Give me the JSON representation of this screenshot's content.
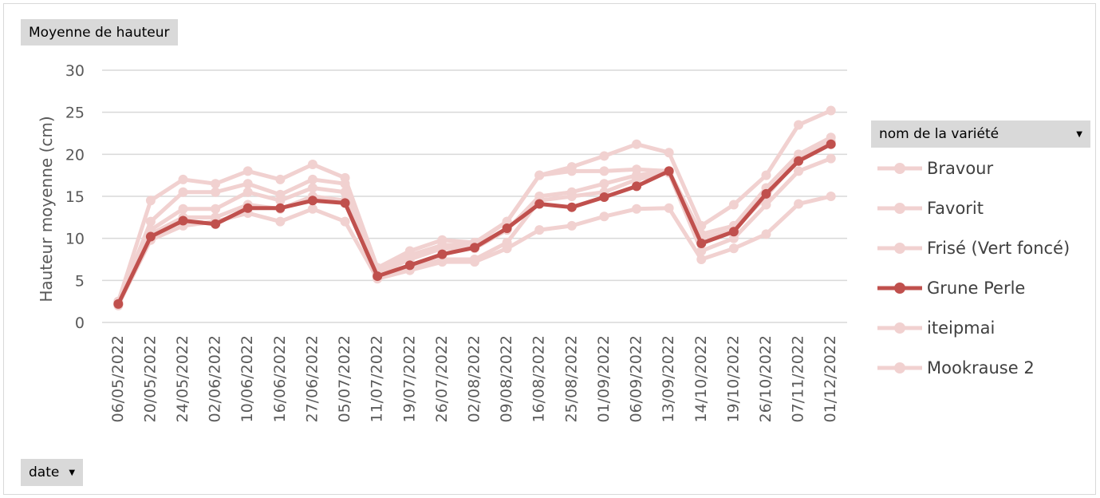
{
  "measure_label": "Moyenne de hauteur",
  "axis_field_label": "date",
  "legend_field_label": "nom de la variété",
  "dropdown_icon": "triangle-down",
  "colors": {
    "highlight": "#c0504d",
    "faded": "#f1d1d0",
    "grid": "#d9d9d9",
    "text": "#595959"
  },
  "chart_data": {
    "type": "line",
    "ylabel": "Hauteur moyenne (cm)",
    "xlabel": "",
    "ylim": [
      0,
      30
    ],
    "yticks": [
      0,
      5,
      10,
      15,
      20,
      25,
      30
    ],
    "grid": true,
    "legend_position": "right",
    "highlighted_series": "Grune Perle",
    "categories": [
      "06/05/2022",
      "20/05/2022",
      "24/05/2022",
      "02/06/2022",
      "10/06/2022",
      "16/06/2022",
      "27/06/2022",
      "05/07/2022",
      "11/07/2022",
      "19/07/2022",
      "26/07/2022",
      "02/08/2022",
      "09/08/2022",
      "16/08/2022",
      "25/08/2022",
      "01/09/2022",
      "06/09/2022",
      "13/09/2022",
      "14/10/2022",
      "19/10/2022",
      "26/10/2022",
      "07/11/2022",
      "01/12/2022"
    ],
    "series": [
      {
        "name": "Bravour",
        "values": [
          2.5,
          14.5,
          17,
          16.5,
          18,
          17,
          18.8,
          17.2,
          6.5,
          8.5,
          9.8,
          9.5,
          12,
          17.5,
          18.5,
          19.8,
          21.2,
          20.2,
          11.5,
          14,
          17.5,
          23.5,
          25.2
        ]
      },
      {
        "name": "Favorit",
        "values": [
          2.3,
          12,
          15.5,
          15.5,
          16.5,
          15.2,
          17,
          16.5,
          6,
          8,
          9.2,
          9.3,
          12,
          17.5,
          18,
          18,
          18.2,
          18,
          10.5,
          11.5,
          16,
          20,
          22
        ]
      },
      {
        "name": "Frisé (Vert foncé)",
        "values": [
          2,
          11,
          13.5,
          13.5,
          15.5,
          14.5,
          16,
          15.5,
          5.8,
          7.5,
          8.8,
          8.8,
          11,
          15,
          15.5,
          16.5,
          17.5,
          18,
          10,
          11,
          15,
          19.5,
          21.5
        ]
      },
      {
        "name": "Grune Perle",
        "values": [
          2.2,
          10.2,
          12.1,
          11.7,
          13.6,
          13.6,
          14.5,
          14.2,
          5.5,
          6.8,
          8.1,
          8.9,
          11.2,
          14.1,
          13.7,
          14.9,
          16.2,
          18,
          9.4,
          10.8,
          15.3,
          19.2,
          21.2
        ]
      },
      {
        "name": "iteipmai",
        "values": [
          2.4,
          10.5,
          12.5,
          12.5,
          14,
          13.5,
          15,
          14.5,
          5.5,
          6.5,
          7.5,
          7.5,
          9.5,
          14.5,
          15,
          15.5,
          17,
          17.8,
          8.5,
          10,
          14,
          18,
          19.5
        ]
      },
      {
        "name": "Mookrause 2",
        "values": [
          2.1,
          9.8,
          11.5,
          12,
          13,
          12,
          13.5,
          12,
          5.2,
          6.2,
          7.2,
          7.2,
          8.8,
          11,
          11.5,
          12.6,
          13.5,
          13.6,
          7.5,
          8.8,
          10.5,
          14.1,
          15
        ]
      }
    ]
  }
}
